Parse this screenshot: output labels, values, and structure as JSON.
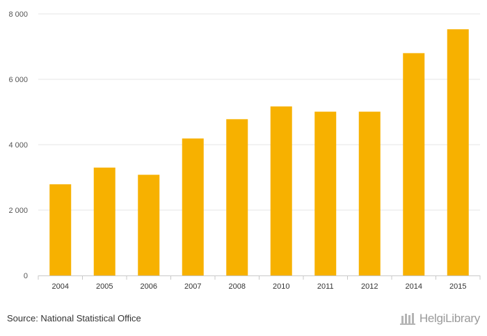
{
  "chart_data": {
    "type": "bar",
    "categories": [
      "2004",
      "2005",
      "2006",
      "2007",
      "2008",
      "2010",
      "2011",
      "2012",
      "2014",
      "2015"
    ],
    "values": [
      2790,
      3300,
      3080,
      4190,
      4780,
      5170,
      5010,
      5010,
      6800,
      7530
    ],
    "yticks": [
      0,
      2000,
      4000,
      6000,
      8000
    ],
    "ytick_labels": [
      "0",
      "2 000",
      "4 000",
      "6 000",
      "8 000"
    ],
    "ylim": [
      0,
      8000
    ],
    "grid": true,
    "bar_color": "#f7b100",
    "title": "",
    "xlabel": "",
    "ylabel": ""
  },
  "footer": {
    "source": "Source: National Statistical Office",
    "brand": "HelgiLibrary"
  }
}
